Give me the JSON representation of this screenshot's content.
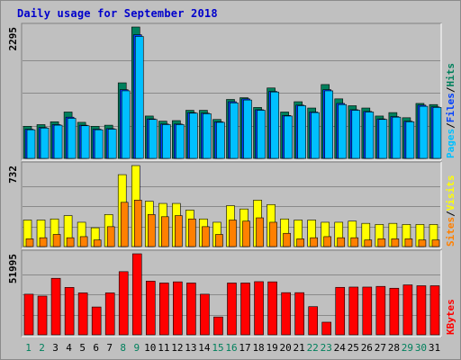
{
  "title": "Daily usage for September 2018",
  "colors": {
    "hits": "#00805c",
    "files": "#0040ff",
    "pages": "#00c0ff",
    "visits": "#ffff00",
    "sites": "#ff8000",
    "kbytes": "#ff0000",
    "weekend_day_label": "#00805c",
    "day_label": "#000000",
    "title": "#0000cc",
    "frame_bg": "#c0c0c0"
  },
  "chart_data": [
    {
      "type": "bar",
      "panel": "top",
      "ymax_label": "2295",
      "ylim": [
        0,
        2295
      ],
      "legend": [
        {
          "text": "Pages",
          "color": "#00c0ff"
        },
        {
          "text": "Files",
          "color": "#0040ff"
        },
        {
          "text": "Hits",
          "color": "#00805c"
        }
      ],
      "legend_separators": [
        "/",
        "/"
      ],
      "categories": [
        "1",
        "2",
        "3",
        "4",
        "5",
        "6",
        "7",
        "8",
        "9",
        "10",
        "11",
        "12",
        "13",
        "14",
        "15",
        "16",
        "17",
        "18",
        "19",
        "20",
        "21",
        "22",
        "23",
        "24",
        "25",
        "26",
        "27",
        "28",
        "29",
        "30",
        "31"
      ],
      "series": [
        {
          "name": "Hits",
          "values": [
            560,
            590,
            640,
            810,
            630,
            560,
            580,
            1320,
            2295,
            740,
            650,
            660,
            840,
            840,
            680,
            1030,
            1060,
            890,
            1230,
            810,
            990,
            880,
            1290,
            1040,
            920,
            880,
            740,
            800,
            710,
            960,
            940
          ]
        },
        {
          "name": "Files",
          "values": [
            510,
            540,
            590,
            720,
            580,
            510,
            520,
            1200,
            2160,
            690,
            600,
            600,
            800,
            790,
            640,
            990,
            1040,
            850,
            1170,
            750,
            930,
            810,
            1200,
            960,
            850,
            820,
            690,
            730,
            650,
            930,
            900
          ]
        },
        {
          "name": "Pages",
          "values": [
            500,
            530,
            580,
            700,
            570,
            500,
            510,
            1180,
            2130,
            680,
            590,
            590,
            790,
            780,
            630,
            970,
            1020,
            840,
            1160,
            740,
            920,
            800,
            1180,
            940,
            840,
            810,
            680,
            720,
            640,
            910,
            890
          ]
        }
      ]
    },
    {
      "type": "bar",
      "panel": "middle",
      "ymax_label": "732",
      "ylim": [
        0,
        732
      ],
      "legend": [
        {
          "text": "Sites",
          "color": "#ff8000"
        },
        {
          "text": "Visits",
          "color": "#ffff00"
        }
      ],
      "legend_separators": [
        "/"
      ],
      "categories": [
        "1",
        "2",
        "3",
        "4",
        "5",
        "6",
        "7",
        "8",
        "9",
        "10",
        "11",
        "12",
        "13",
        "14",
        "15",
        "16",
        "17",
        "18",
        "19",
        "20",
        "21",
        "22",
        "23",
        "24",
        "25",
        "26",
        "27",
        "28",
        "29",
        "30",
        "31"
      ],
      "series": [
        {
          "name": "Visits",
          "values": [
            240,
            240,
            250,
            280,
            220,
            170,
            290,
            650,
            732,
            410,
            390,
            390,
            330,
            250,
            220,
            370,
            340,
            420,
            380,
            250,
            240,
            240,
            220,
            220,
            230,
            210,
            200,
            210,
            200,
            200,
            200
          ]
        },
        {
          "name": "Sites",
          "values": [
            70,
            80,
            110,
            80,
            90,
            60,
            180,
            400,
            420,
            290,
            270,
            280,
            250,
            180,
            110,
            240,
            230,
            260,
            220,
            120,
            70,
            80,
            90,
            80,
            80,
            60,
            70,
            70,
            70,
            60,
            60
          ]
        }
      ]
    },
    {
      "type": "bar",
      "panel": "bottom",
      "ymax_label": "51995",
      "ylim": [
        0,
        51995
      ],
      "legend": [
        {
          "text": "KBytes",
          "color": "#ff0000"
        }
      ],
      "legend_separators": [],
      "categories": [
        "1",
        "2",
        "3",
        "4",
        "5",
        "6",
        "7",
        "8",
        "9",
        "10",
        "11",
        "12",
        "13",
        "14",
        "15",
        "16",
        "17",
        "18",
        "19",
        "20",
        "21",
        "22",
        "23",
        "24",
        "25",
        "26",
        "27",
        "28",
        "29",
        "30",
        "31"
      ],
      "weekend_days": [
        "1",
        "2",
        "8",
        "9",
        "15",
        "16",
        "22",
        "23",
        "29",
        "30"
      ],
      "series": [
        {
          "name": "KBytes",
          "values": [
            26060,
            24860,
            36270,
            30420,
            26900,
            17860,
            26900,
            40530,
            51995,
            34450,
            33250,
            34000,
            33250,
            26060,
            11460,
            33250,
            33250,
            34110,
            34000,
            27060,
            27060,
            18070,
            8100,
            30470,
            30640,
            30640,
            31080,
            29900,
            32040,
            31500,
            31500
          ]
        }
      ]
    }
  ]
}
